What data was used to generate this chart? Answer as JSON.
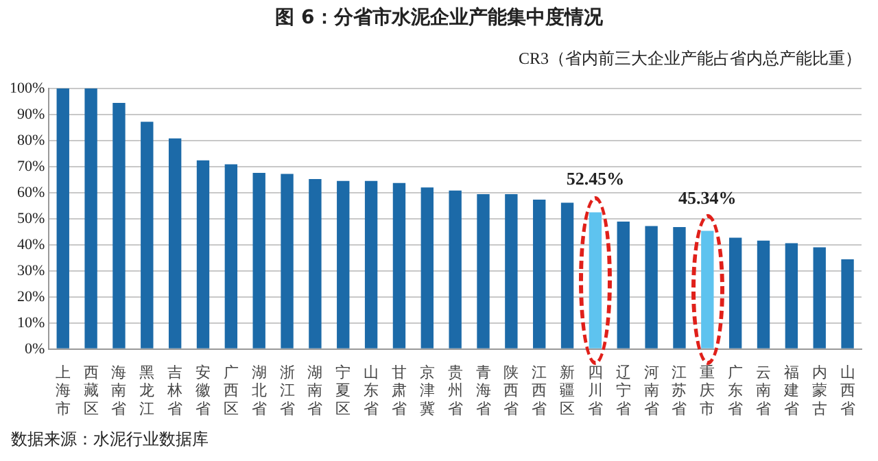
{
  "chart_data": {
    "type": "bar",
    "title": "图 6：分省市水泥企业产能集中度情况",
    "subtitle": "CR3（省内前三大企业产能占省内总产能比重）",
    "categories": [
      "上海市",
      "西藏区",
      "海南省",
      "黑龙江",
      "吉林省",
      "安徽省",
      "广西区",
      "湖北省",
      "浙江省",
      "湖南省",
      "宁夏区",
      "山东省",
      "甘肃省",
      "京津冀",
      "贵州省",
      "青海省",
      "陕西省",
      "江西省",
      "新疆区",
      "四川省",
      "辽宁省",
      "河南省",
      "江苏省",
      "重庆市",
      "广东省",
      "云南省",
      "福建省",
      "内蒙古",
      "山西省"
    ],
    "values": [
      100,
      100,
      94.4,
      87.2,
      80.8,
      72.4,
      70.9,
      67.6,
      67.2,
      65.2,
      64.5,
      64.5,
      63.7,
      62,
      60.8,
      59.4,
      59.4,
      57.3,
      56.1,
      52.45,
      48.9,
      47.2,
      46.8,
      45.34,
      42.7,
      41.6,
      40.6,
      39,
      34.4
    ],
    "colors": [
      "#1c6aa8",
      "#1c6aa8",
      "#1c6aa8",
      "#1c6aa8",
      "#1c6aa8",
      "#1c6aa8",
      "#1c6aa8",
      "#1c6aa8",
      "#1c6aa8",
      "#1c6aa8",
      "#1c6aa8",
      "#1c6aa8",
      "#1c6aa8",
      "#1c6aa8",
      "#1c6aa8",
      "#1c6aa8",
      "#1c6aa8",
      "#1c6aa8",
      "#1c6aa8",
      "#5ec3ef",
      "#1c6aa8",
      "#1c6aa8",
      "#1c6aa8",
      "#5ec3ef",
      "#1c6aa8",
      "#1c6aa8",
      "#1c6aa8",
      "#1c6aa8",
      "#1c6aa8"
    ],
    "ylim": [
      0,
      100
    ],
    "yticks": [
      {
        "value": 0,
        "label": "0%"
      },
      {
        "value": 10,
        "label": "10%"
      },
      {
        "value": 20,
        "label": "20%"
      },
      {
        "value": 30,
        "label": "30%"
      },
      {
        "value": 40,
        "label": "40%"
      },
      {
        "value": 50,
        "label": "50%"
      },
      {
        "value": 60,
        "label": "60%"
      },
      {
        "value": 70,
        "label": "70%"
      },
      {
        "value": 80,
        "label": "80%"
      },
      {
        "value": 90,
        "label": "90%"
      },
      {
        "value": 100,
        "label": "100%"
      }
    ],
    "grid": "y",
    "legend": false,
    "annotations": [
      {
        "text": "52.45%",
        "x": "四川省",
        "y": 52.45
      },
      {
        "text": "45.34%",
        "x": "重庆市",
        "y": 45.34
      },
      "数据来源：水泥行业数据库"
    ]
  }
}
